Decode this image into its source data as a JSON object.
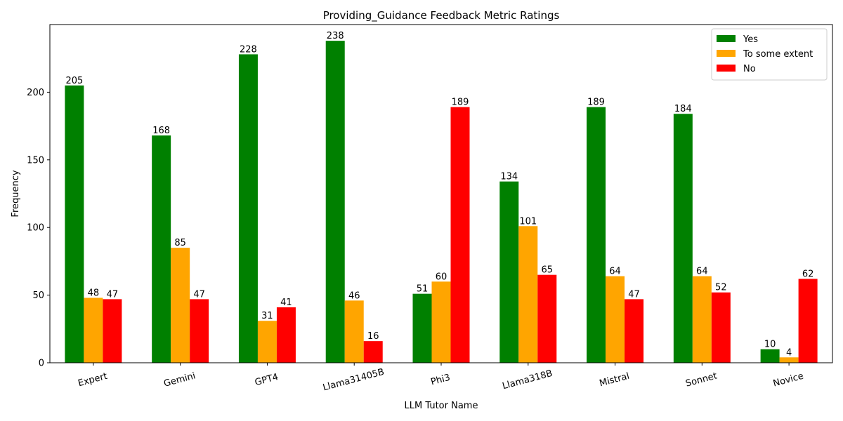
{
  "chart_data": {
    "type": "bar",
    "title": "Providing_Guidance Feedback Metric Ratings",
    "xlabel": "LLM Tutor Name",
    "ylabel": "Frequency",
    "categories": [
      "Expert",
      "Gemini",
      "GPT4",
      "Llama31405B",
      "Phi3",
      "Llama318B",
      "Mistral",
      "Sonnet",
      "Novice"
    ],
    "series": [
      {
        "name": "Yes",
        "color": "#008000",
        "values": [
          205,
          168,
          228,
          238,
          51,
          134,
          189,
          184,
          10
        ]
      },
      {
        "name": "To some extent",
        "color": "#FFA500",
        "values": [
          48,
          85,
          31,
          46,
          60,
          101,
          64,
          64,
          4
        ]
      },
      {
        "name": "No",
        "color": "#FF0000",
        "values": [
          47,
          47,
          41,
          16,
          189,
          65,
          47,
          52,
          62
        ]
      }
    ],
    "ylim": [
      0,
      250
    ],
    "yticks": [
      0,
      50,
      100,
      150,
      200
    ],
    "xtick_rotation": -15,
    "legend_position": "top-right",
    "grid": false
  }
}
